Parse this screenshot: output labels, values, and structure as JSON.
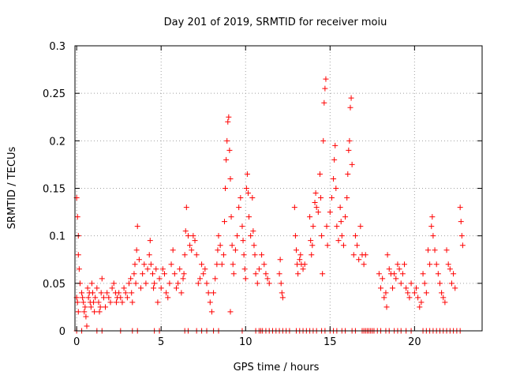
{
  "chart_data": {
    "type": "scatter",
    "title": "Day 201 of 2019, SRMTID for receiver moiu",
    "xlabel": "GPS time / hours",
    "ylabel": "SRMTID / TECUs",
    "xlim": [
      -0.1,
      24
    ],
    "ylim": [
      0,
      0.3
    ],
    "xticks": [
      0,
      5,
      10,
      15,
      20
    ],
    "xtick_labels": [
      "0",
      "5",
      "10",
      "15",
      "20"
    ],
    "yticks": [
      0,
      0.05,
      0.1,
      0.15,
      0.2,
      0.25,
      0.3
    ],
    "ytick_labels": [
      "0",
      "0.05",
      "0.1",
      "0.15",
      "0.2",
      "0.25",
      "0.3"
    ],
    "grid": true,
    "marker": "+",
    "color": "#ff0000",
    "series": [
      {
        "name": "SRMTID",
        "points": [
          [
            0.0,
            0.14
          ],
          [
            0.05,
            0.12
          ],
          [
            0.1,
            0.1
          ],
          [
            0.1,
            0.08
          ],
          [
            0.15,
            0.065
          ],
          [
            0.2,
            0.05
          ],
          [
            0.0,
            0.035
          ],
          [
            0.05,
            0.03
          ],
          [
            0.1,
            0.02
          ],
          [
            0.3,
            0.04
          ],
          [
            0.35,
            0.035
          ],
          [
            0.4,
            0.03
          ],
          [
            0.45,
            0.02
          ],
          [
            0.5,
            0.025
          ],
          [
            0.55,
            0.015
          ],
          [
            0.6,
            0.005
          ],
          [
            0.65,
            0.045
          ],
          [
            0.7,
            0.035
          ],
          [
            0.75,
            0.04
          ],
          [
            0.8,
            0.03
          ],
          [
            0.85,
            0.025
          ],
          [
            0.9,
            0.05
          ],
          [
            0.95,
            0.04
          ],
          [
            1.0,
            0.03
          ],
          [
            1.05,
            0.02
          ],
          [
            1.1,
            0.035
          ],
          [
            1.2,
            0.045
          ],
          [
            1.3,
            0.03
          ],
          [
            1.35,
            0.02
          ],
          [
            1.4,
            0.025
          ],
          [
            1.45,
            0.04
          ],
          [
            1.5,
            0.055
          ],
          [
            1.6,
            0.035
          ],
          [
            1.7,
            0.025
          ],
          [
            1.8,
            0.04
          ],
          [
            1.9,
            0.035
          ],
          [
            2.0,
            0.03
          ],
          [
            2.1,
            0.045
          ],
          [
            2.2,
            0.05
          ],
          [
            2.3,
            0.04
          ],
          [
            2.35,
            0.03
          ],
          [
            2.4,
            0.035
          ],
          [
            2.5,
            0.04
          ],
          [
            2.6,
            0.035
          ],
          [
            2.7,
            0.03
          ],
          [
            2.8,
            0.045
          ],
          [
            2.9,
            0.04
          ],
          [
            3.0,
            0.035
          ],
          [
            3.1,
            0.05
          ],
          [
            3.2,
            0.055
          ],
          [
            3.25,
            0.04
          ],
          [
            3.3,
            0.03
          ],
          [
            3.4,
            0.06
          ],
          [
            3.45,
            0.07
          ],
          [
            3.5,
            0.05
          ],
          [
            3.55,
            0.085
          ],
          [
            3.6,
            0.11
          ],
          [
            3.7,
            0.075
          ],
          [
            3.8,
            0.045
          ],
          [
            3.9,
            0.06
          ],
          [
            4.0,
            0.07
          ],
          [
            4.1,
            0.05
          ],
          [
            4.2,
            0.065
          ],
          [
            4.3,
            0.08
          ],
          [
            4.35,
            0.095
          ],
          [
            4.4,
            0.07
          ],
          [
            4.5,
            0.06
          ],
          [
            4.55,
            0.045
          ],
          [
            4.6,
            0.05
          ],
          [
            4.7,
            0.065
          ],
          [
            4.8,
            0.03
          ],
          [
            4.9,
            0.055
          ],
          [
            5.0,
            0.045
          ],
          [
            5.1,
            0.065
          ],
          [
            5.2,
            0.06
          ],
          [
            5.3,
            0.04
          ],
          [
            5.4,
            0.035
          ],
          [
            5.5,
            0.05
          ],
          [
            5.6,
            0.07
          ],
          [
            5.7,
            0.085
          ],
          [
            5.8,
            0.06
          ],
          [
            5.9,
            0.045
          ],
          [
            6.0,
            0.05
          ],
          [
            6.1,
            0.065
          ],
          [
            6.2,
            0.04
          ],
          [
            6.3,
            0.055
          ],
          [
            6.35,
            0.06
          ],
          [
            6.4,
            0.08
          ],
          [
            6.45,
            0.105
          ],
          [
            6.5,
            0.13
          ],
          [
            6.6,
            0.1
          ],
          [
            6.7,
            0.09
          ],
          [
            6.8,
            0.085
          ],
          [
            6.9,
            0.1
          ],
          [
            7.0,
            0.095
          ],
          [
            7.1,
            0.08
          ],
          [
            7.2,
            0.05
          ],
          [
            7.3,
            0.055
          ],
          [
            7.4,
            0.07
          ],
          [
            7.5,
            0.06
          ],
          [
            7.6,
            0.065
          ],
          [
            7.7,
            0.05
          ],
          [
            7.8,
            0.04
          ],
          [
            7.9,
            0.03
          ],
          [
            8.0,
            0.02
          ],
          [
            8.1,
            0.04
          ],
          [
            8.2,
            0.055
          ],
          [
            8.3,
            0.07
          ],
          [
            8.35,
            0.085
          ],
          [
            8.4,
            0.1
          ],
          [
            8.5,
            0.09
          ],
          [
            8.6,
            0.07
          ],
          [
            8.7,
            0.08
          ],
          [
            8.75,
            0.115
          ],
          [
            8.8,
            0.15
          ],
          [
            8.85,
            0.18
          ],
          [
            8.9,
            0.2
          ],
          [
            8.95,
            0.22
          ],
          [
            9.0,
            0.225
          ],
          [
            9.05,
            0.19
          ],
          [
            9.1,
            0.16
          ],
          [
            9.15,
            0.12
          ],
          [
            9.2,
            0.09
          ],
          [
            9.25,
            0.07
          ],
          [
            9.3,
            0.06
          ],
          [
            9.4,
            0.085
          ],
          [
            9.5,
            0.1
          ],
          [
            9.6,
            0.13
          ],
          [
            9.7,
            0.14
          ],
          [
            9.8,
            0.11
          ],
          [
            9.85,
            0.095
          ],
          [
            9.9,
            0.08
          ],
          [
            9.95,
            0.065
          ],
          [
            10.0,
            0.055
          ],
          [
            10.05,
            0.15
          ],
          [
            10.1,
            0.165
          ],
          [
            10.15,
            0.145
          ],
          [
            10.2,
            0.12
          ],
          [
            10.3,
            0.1
          ],
          [
            10.4,
            0.14
          ],
          [
            10.45,
            0.105
          ],
          [
            10.5,
            0.09
          ],
          [
            10.55,
            0.08
          ],
          [
            10.6,
            0.06
          ],
          [
            10.7,
            0.05
          ],
          [
            10.8,
            0.065
          ],
          [
            9.1,
            0.02
          ],
          [
            10.95,
            0.08
          ],
          [
            11.1,
            0.07
          ],
          [
            11.2,
            0.06
          ],
          [
            11.3,
            0.055
          ],
          [
            11.4,
            0.05
          ],
          [
            12.0,
            0.06
          ],
          [
            12.05,
            0.075
          ],
          [
            12.1,
            0.05
          ],
          [
            12.15,
            0.04
          ],
          [
            12.2,
            0.035
          ],
          [
            12.9,
            0.13
          ],
          [
            12.95,
            0.1
          ],
          [
            13.0,
            0.085
          ],
          [
            13.05,
            0.07
          ],
          [
            13.1,
            0.06
          ],
          [
            13.2,
            0.075
          ],
          [
            13.25,
            0.08
          ],
          [
            13.3,
            0.07
          ],
          [
            13.4,
            0.065
          ],
          [
            13.5,
            0.07
          ],
          [
            13.8,
            0.12
          ],
          [
            13.85,
            0.095
          ],
          [
            13.9,
            0.08
          ],
          [
            13.95,
            0.09
          ],
          [
            14.0,
            0.11
          ],
          [
            14.1,
            0.135
          ],
          [
            14.15,
            0.145
          ],
          [
            14.2,
            0.13
          ],
          [
            14.3,
            0.125
          ],
          [
            14.4,
            0.165
          ],
          [
            14.45,
            0.14
          ],
          [
            14.5,
            0.1
          ],
          [
            14.55,
            0.06
          ],
          [
            14.6,
            0.2
          ],
          [
            14.65,
            0.24
          ],
          [
            14.7,
            0.255
          ],
          [
            14.75,
            0.265
          ],
          [
            14.8,
            0.11
          ],
          [
            14.85,
            0.09
          ],
          [
            15.0,
            0.125
          ],
          [
            15.1,
            0.14
          ],
          [
            15.2,
            0.16
          ],
          [
            15.25,
            0.18
          ],
          [
            15.3,
            0.195
          ],
          [
            15.35,
            0.15
          ],
          [
            15.4,
            0.11
          ],
          [
            15.5,
            0.095
          ],
          [
            15.6,
            0.13
          ],
          [
            15.65,
            0.115
          ],
          [
            15.7,
            0.1
          ],
          [
            15.8,
            0.09
          ],
          [
            15.9,
            0.12
          ],
          [
            16.0,
            0.14
          ],
          [
            16.05,
            0.165
          ],
          [
            16.1,
            0.19
          ],
          [
            16.15,
            0.2
          ],
          [
            16.2,
            0.235
          ],
          [
            16.25,
            0.245
          ],
          [
            16.3,
            0.175
          ],
          [
            16.4,
            0.08
          ],
          [
            16.5,
            0.1
          ],
          [
            16.6,
            0.09
          ],
          [
            16.7,
            0.075
          ],
          [
            16.8,
            0.11
          ],
          [
            16.9,
            0.08
          ],
          [
            17.0,
            0.07
          ],
          [
            17.1,
            0.08
          ],
          [
            17.9,
            0.06
          ],
          [
            18.0,
            0.045
          ],
          [
            18.1,
            0.055
          ],
          [
            18.2,
            0.035
          ],
          [
            18.3,
            0.04
          ],
          [
            18.35,
            0.025
          ],
          [
            18.4,
            0.08
          ],
          [
            18.5,
            0.065
          ],
          [
            18.6,
            0.06
          ],
          [
            18.7,
            0.045
          ],
          [
            18.8,
            0.06
          ],
          [
            18.9,
            0.055
          ],
          [
            19.0,
            0.07
          ],
          [
            19.1,
            0.065
          ],
          [
            19.2,
            0.05
          ],
          [
            19.3,
            0.06
          ],
          [
            19.4,
            0.07
          ],
          [
            19.5,
            0.045
          ],
          [
            19.6,
            0.04
          ],
          [
            19.7,
            0.035
          ],
          [
            19.8,
            0.05
          ],
          [
            20.0,
            0.04
          ],
          [
            20.1,
            0.045
          ],
          [
            20.2,
            0.035
          ],
          [
            20.3,
            0.025
          ],
          [
            20.4,
            0.03
          ],
          [
            20.5,
            0.06
          ],
          [
            20.6,
            0.05
          ],
          [
            20.7,
            0.04
          ],
          [
            20.8,
            0.085
          ],
          [
            20.9,
            0.07
          ],
          [
            21.0,
            0.11
          ],
          [
            21.05,
            0.12
          ],
          [
            21.1,
            0.1
          ],
          [
            21.2,
            0.085
          ],
          [
            21.3,
            0.07
          ],
          [
            21.4,
            0.06
          ],
          [
            21.5,
            0.05
          ],
          [
            21.6,
            0.04
          ],
          [
            21.7,
            0.035
          ],
          [
            21.8,
            0.03
          ],
          [
            21.9,
            0.085
          ],
          [
            22.0,
            0.07
          ],
          [
            22.1,
            0.065
          ],
          [
            22.2,
            0.05
          ],
          [
            22.3,
            0.06
          ],
          [
            22.4,
            0.045
          ],
          [
            22.7,
            0.13
          ],
          [
            22.75,
            0.115
          ],
          [
            22.8,
            0.1
          ],
          [
            22.85,
            0.09
          ]
        ],
        "zero_x": [
          0.0,
          0.3,
          1.2,
          1.5,
          2.6,
          3.3,
          3.6,
          4.6,
          4.9,
          6.4,
          6.6,
          7.1,
          7.4,
          7.7,
          8.1,
          8.4,
          9.8,
          10.6,
          10.8,
          10.9,
          11.0,
          11.2,
          11.4,
          11.6,
          11.8,
          12.0,
          12.2,
          12.4,
          12.6,
          13.0,
          13.2,
          13.4,
          13.6,
          13.8,
          14.0,
          14.2,
          14.5,
          14.7,
          15.0,
          15.2,
          15.4,
          15.7,
          15.9,
          16.3,
          16.5,
          16.9,
          17.0,
          17.1,
          17.2,
          17.3,
          17.4,
          17.5,
          17.6,
          17.8,
          18.0,
          18.3,
          18.5,
          18.8,
          19.0,
          19.2,
          19.5,
          19.8,
          20.5,
          20.7,
          20.9,
          21.1,
          21.3,
          21.5,
          21.7,
          21.9,
          22.1,
          22.3,
          22.5,
          22.7
        ]
      }
    ]
  }
}
